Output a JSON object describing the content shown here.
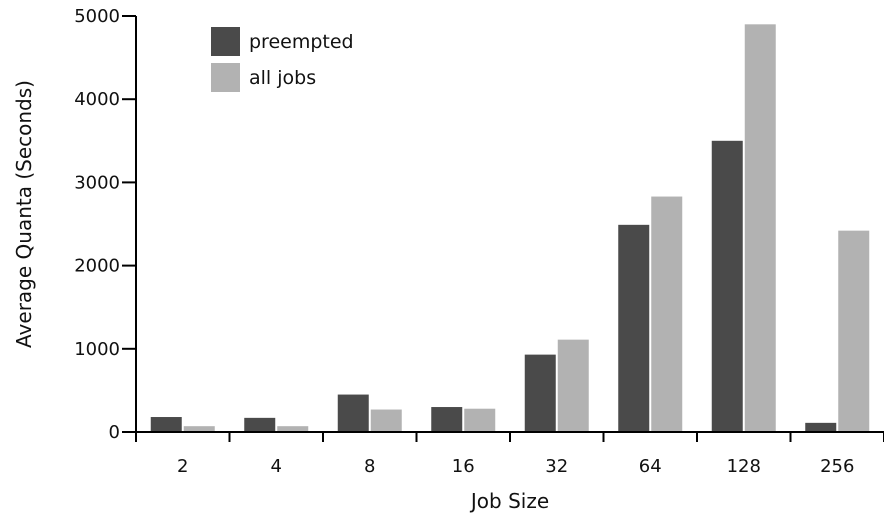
{
  "chart_data": {
    "type": "bar",
    "xlabel": "Job Size",
    "ylabel": "Average Quanta (Seconds)",
    "categories": [
      "2",
      "4",
      "8",
      "16",
      "32",
      "64",
      "128",
      "256"
    ],
    "series": [
      {
        "name": "preempted",
        "color": "#4a4a4a",
        "values": [
          180,
          170,
          450,
          300,
          930,
          2490,
          3500,
          110
        ]
      },
      {
        "name": "all jobs",
        "color": "#b2b2b2",
        "values": [
          70,
          70,
          270,
          280,
          1110,
          2830,
          4900,
          2420
        ]
      }
    ],
    "ylim": [
      0,
      5000
    ],
    "yticks": [
      0,
      1000,
      2000,
      3000,
      4000,
      5000
    ],
    "grid": false,
    "legend_position": "top-left"
  }
}
